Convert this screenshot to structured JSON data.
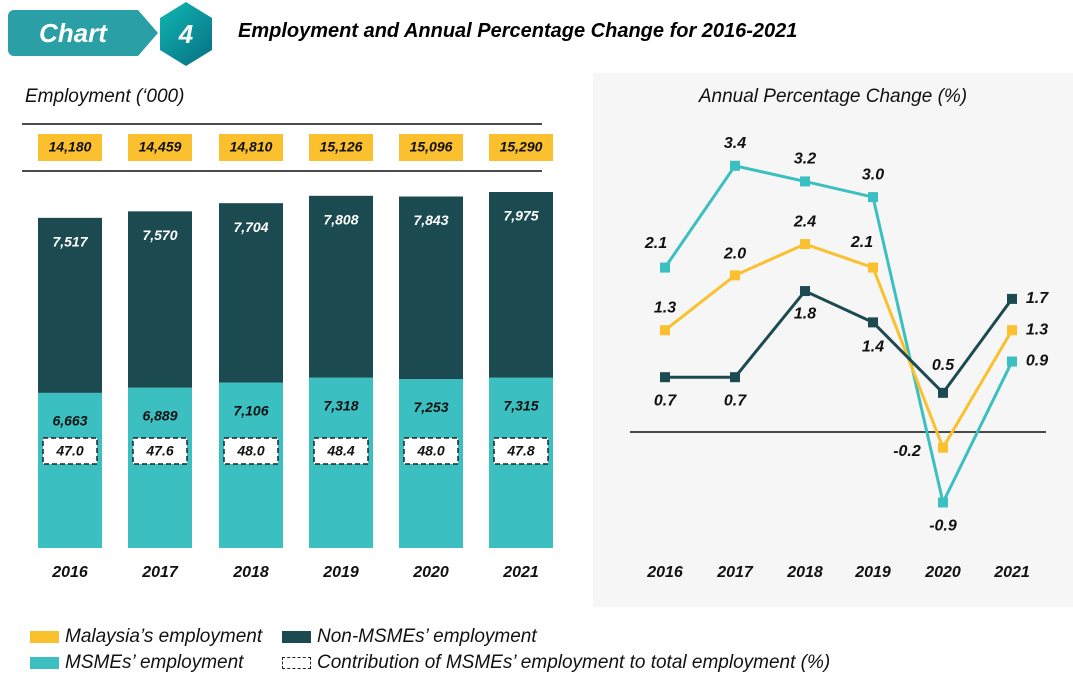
{
  "header": {
    "tag": "Chart",
    "number": "4",
    "title": "Employment and Annual Percentage Change for 2016-2021"
  },
  "colors": {
    "malaysia": "#fbc02d",
    "msme": "#3bbfc0",
    "non_msme": "#1b4a50",
    "panel_bg": "#f6f6f6"
  },
  "legend": {
    "malaysia": "Malaysia’s employment",
    "msme": "MSMEs’ employment",
    "non_msme": "Non-MSMEs’ employment",
    "contribution": "Contribution of MSMEs’ employment to total employment (%)"
  },
  "chart_data": [
    {
      "type": "bar",
      "stacked": true,
      "title": "Employment (‘000)",
      "categories": [
        "2016",
        "2017",
        "2018",
        "2019",
        "2020",
        "2021"
      ],
      "series": [
        {
          "name": "MSMEs’ employment",
          "values": [
            6663,
            6889,
            7106,
            7318,
            7253,
            7315
          ],
          "labels": [
            "6,663",
            "6,889",
            "7,106",
            "7,318",
            "7,253",
            "7,315"
          ]
        },
        {
          "name": "Non-MSMEs’ employment",
          "values": [
            7517,
            7570,
            7704,
            7808,
            7843,
            7975
          ],
          "labels": [
            "7,517",
            "7,570",
            "7,704",
            "7,808",
            "7,843",
            "7,975"
          ]
        }
      ],
      "totals": {
        "name": "Malaysia’s employment",
        "values": [
          14180,
          14459,
          14810,
          15126,
          15096,
          15290
        ],
        "labels": [
          "14,180",
          "14,459",
          "14,810",
          "15,126",
          "15,096",
          "15,290"
        ]
      },
      "contribution": {
        "name": "Contribution of MSMEs’ employment to total employment (%)",
        "values": [
          47.0,
          47.6,
          48.0,
          48.4,
          48.0,
          47.8
        ],
        "labels": [
          "47.0",
          "47.6",
          "48.0",
          "48.4",
          "48.0",
          "47.8"
        ]
      }
    },
    {
      "type": "line",
      "title": "Annual Percentage Change (%)",
      "categories": [
        "2016",
        "2017",
        "2018",
        "2019",
        "2020",
        "2021"
      ],
      "series": [
        {
          "name": "MSMEs’ employment",
          "key": "msme",
          "values": [
            2.1,
            3.4,
            3.2,
            3.0,
            -0.9,
            0.9
          ],
          "labels": [
            "2.1",
            "3.4",
            "3.2",
            "3.0",
            "-0.9",
            "0.9"
          ]
        },
        {
          "name": "Malaysia’s employment",
          "key": "malaysia",
          "values": [
            1.3,
            2.0,
            2.4,
            2.1,
            -0.2,
            1.3
          ],
          "labels": [
            "1.3",
            "2.0",
            "2.4",
            "2.1",
            "-0.2",
            "1.3"
          ]
        },
        {
          "name": "Non-MSMEs’ employment",
          "key": "non_msme",
          "values": [
            0.7,
            0.7,
            1.8,
            1.4,
            0.5,
            1.7
          ],
          "labels": [
            "0.7",
            "0.7",
            "1.8",
            "1.4",
            "0.5",
            "1.7"
          ]
        }
      ],
      "zero_line": true,
      "grid": false
    }
  ]
}
